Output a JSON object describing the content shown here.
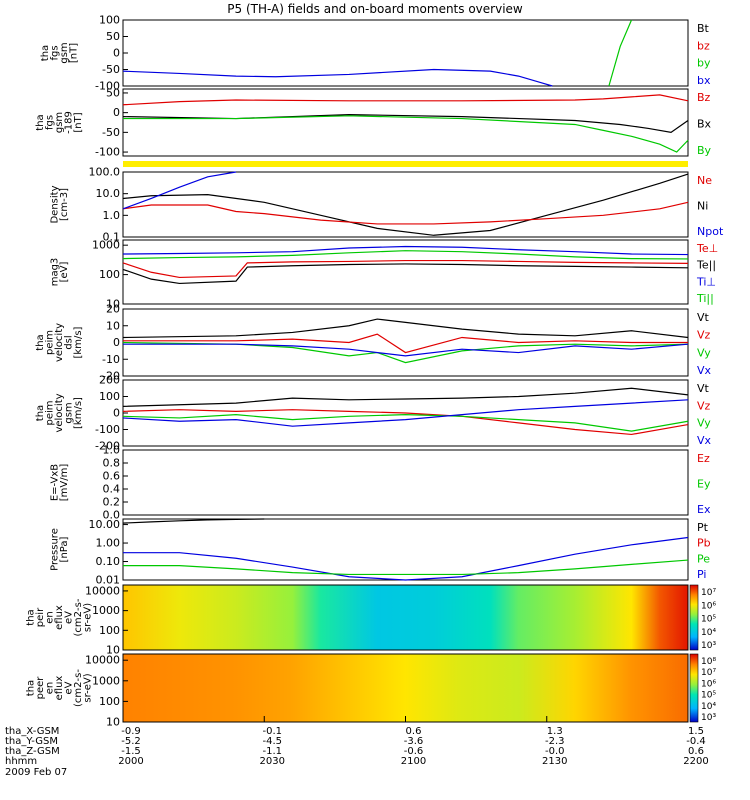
{
  "title": "P5 (TH-A) fields and on-board moments overview",
  "date": "2009 Feb 07",
  "bottom_axis": {
    "times": [
      "2000",
      "2030",
      "2100",
      "2130",
      "2200"
    ],
    "rows": [
      {
        "label": "tha_X-GSM",
        "values": [
          "-0.9",
          "-0.1",
          "0.6",
          "1.3",
          "1.5"
        ]
      },
      {
        "label": "tha_Y-GSM",
        "values": [
          "-5.2",
          "-4.5",
          "-3.6",
          "-2.3",
          "-0.4"
        ]
      },
      {
        "label": "tha_Z-GSM",
        "values": [
          "-1.5",
          "-1.1",
          "-0.6",
          "-0.0",
          "0.6"
        ]
      },
      {
        "label": "hhmm",
        "values": [
          "",
          "",
          "",
          "",
          ""
        ]
      }
    ]
  },
  "colors": {
    "black": "#000000",
    "red": "#e00000",
    "green": "#00c800",
    "blue": "#0000e0"
  },
  "chart_data": [
    {
      "type": "line",
      "ylabel_lines": [
        "tha",
        "fgs",
        "gsm",
        "[nT]"
      ],
      "ylim": [
        -100,
        100
      ],
      "ticks": [
        "100",
        "50",
        "0",
        "-50",
        "-100"
      ],
      "legend": [
        {
          "name": "Bt",
          "color": "#000000"
        },
        {
          "name": "bz",
          "color": "#e00000"
        },
        {
          "name": "by",
          "color": "#00c800"
        },
        {
          "name": "bx",
          "color": "#0000e0"
        }
      ],
      "series": [
        {
          "name": "bx",
          "color": "#0000e0",
          "x": [
            0,
            0.1,
            0.2,
            0.27,
            0.4,
            0.55,
            0.65,
            0.7,
            0.74,
            0.76
          ],
          "y": [
            -55,
            -62,
            -70,
            -72,
            -65,
            -50,
            -55,
            -70,
            -90,
            -100
          ]
        },
        {
          "name": "by",
          "color": "#00c800",
          "x": [
            0.86,
            0.88,
            0.9
          ],
          "y": [
            -100,
            20,
            100
          ]
        }
      ]
    },
    {
      "type": "line",
      "ylabel_lines": [
        "tha",
        "fgs",
        "gsm",
        "-189",
        "[nT]"
      ],
      "ylim": [
        -110,
        60
      ],
      "ticks": [
        "50",
        "0",
        "-50",
        "-100"
      ],
      "legend": [
        {
          "name": "Bz",
          "color": "#e00000"
        },
        {
          "name": "Bx",
          "color": "#000000"
        },
        {
          "name": "By",
          "color": "#00c800"
        }
      ],
      "series": [
        {
          "name": "Bz",
          "color": "#e00000",
          "x": [
            0,
            0.1,
            0.2,
            0.4,
            0.6,
            0.8,
            0.85,
            0.9,
            0.95,
            1.0
          ],
          "y": [
            20,
            28,
            32,
            30,
            30,
            32,
            35,
            40,
            45,
            30
          ]
        },
        {
          "name": "Bx",
          "color": "#000000",
          "x": [
            0,
            0.2,
            0.4,
            0.6,
            0.8,
            0.88,
            0.93,
            0.97,
            1.0
          ],
          "y": [
            -10,
            -15,
            -5,
            -10,
            -20,
            -30,
            -40,
            -50,
            -20
          ]
        },
        {
          "name": "By",
          "color": "#00c800",
          "x": [
            0,
            0.2,
            0.4,
            0.6,
            0.8,
            0.85,
            0.9,
            0.95,
            0.98,
            1.0
          ],
          "y": [
            -15,
            -15,
            -8,
            -15,
            -30,
            -45,
            -60,
            -80,
            -100,
            -70
          ]
        }
      ]
    },
    {
      "type": "line",
      "ylabel_lines": [
        "Density",
        "[cm-3]"
      ],
      "ylim": [
        0.1,
        100
      ],
      "log_scale": true,
      "ticks": [
        "100.0",
        "10.0",
        "1.0",
        "0.1"
      ],
      "legend": [
        {
          "name": "Ne",
          "color": "#e00000"
        },
        {
          "name": "Ni",
          "color": "#000000"
        },
        {
          "name": "Npot",
          "color": "#0000e0"
        }
      ],
      "series": [
        {
          "name": "Ni",
          "color": "#000000",
          "x": [
            0,
            0.05,
            0.15,
            0.25,
            0.35,
            0.45,
            0.55,
            0.65,
            0.75,
            0.85,
            0.95,
            1.0
          ],
          "y": [
            6,
            8,
            9,
            4,
            1,
            0.25,
            0.12,
            0.2,
            1,
            5,
            30,
            80
          ]
        },
        {
          "name": "Ne",
          "color": "#e00000",
          "x": [
            0,
            0.05,
            0.15,
            0.2,
            0.25,
            0.35,
            0.45,
            0.55,
            0.65,
            0.75,
            0.85,
            0.95,
            1.0
          ],
          "y": [
            2,
            3,
            3,
            1.5,
            1.2,
            0.6,
            0.4,
            0.4,
            0.5,
            0.7,
            1,
            2,
            4
          ]
        },
        {
          "name": "Npot",
          "color": "#0000e0",
          "x": [
            0,
            0.05,
            0.1,
            0.15,
            0.2
          ],
          "y": [
            2,
            6,
            20,
            60,
            150
          ]
        }
      ]
    },
    {
      "type": "line",
      "ylabel_lines": [
        "mag3",
        "[eV]"
      ],
      "ylim": [
        10,
        1500
      ],
      "log_scale": true,
      "ticks": [
        "1000",
        "100",
        "10"
      ],
      "legend": [
        {
          "name": "Te⊥",
          "color": "#e00000"
        },
        {
          "name": "Te||",
          "color": "#000000"
        },
        {
          "name": "Ti⊥",
          "color": "#0000e0"
        },
        {
          "name": "Ti||",
          "color": "#00c800"
        }
      ],
      "series": [
        {
          "name": "Ti⊥",
          "color": "#0000e0",
          "x": [
            0,
            0.1,
            0.2,
            0.3,
            0.4,
            0.5,
            0.6,
            0.7,
            0.8,
            0.9,
            1.0
          ],
          "y": [
            500,
            520,
            550,
            600,
            800,
            900,
            850,
            700,
            600,
            500,
            480
          ]
        },
        {
          "name": "Ti||",
          "color": "#00c800",
          "x": [
            0,
            0.1,
            0.2,
            0.3,
            0.4,
            0.5,
            0.6,
            0.7,
            0.8,
            0.9,
            1.0
          ],
          "y": [
            350,
            380,
            400,
            450,
            550,
            650,
            600,
            500,
            400,
            350,
            340
          ]
        },
        {
          "name": "Te⊥",
          "color": "#e00000",
          "x": [
            0,
            0.05,
            0.1,
            0.2,
            0.22,
            0.3,
            0.4,
            0.5,
            0.6,
            0.7,
            0.8,
            0.9,
            1.0
          ],
          "y": [
            250,
            120,
            80,
            90,
            250,
            270,
            280,
            300,
            300,
            280,
            260,
            250,
            240
          ]
        },
        {
          "name": "Te||",
          "color": "#000000",
          "x": [
            0,
            0.05,
            0.1,
            0.2,
            0.22,
            0.3,
            0.4,
            0.5,
            0.6,
            0.7,
            0.8,
            0.9,
            1.0
          ],
          "y": [
            150,
            70,
            50,
            60,
            180,
            200,
            220,
            230,
            220,
            200,
            190,
            180,
            170
          ]
        }
      ]
    },
    {
      "type": "line",
      "ylabel_lines": [
        "tha",
        "peim",
        "velocity",
        "dsl",
        "[km/s]"
      ],
      "ylim": [
        -20,
        20
      ],
      "ticks": [
        "20",
        "10",
        "0",
        "-10",
        "-20"
      ],
      "legend": [
        {
          "name": "Vt",
          "color": "#000000"
        },
        {
          "name": "Vz",
          "color": "#e00000"
        },
        {
          "name": "Vy",
          "color": "#00c800"
        },
        {
          "name": "Vx",
          "color": "#0000e0"
        }
      ],
      "series": [
        {
          "name": "Vt",
          "color": "#000000",
          "x": [
            0,
            0.2,
            0.3,
            0.4,
            0.45,
            0.5,
            0.6,
            0.7,
            0.8,
            0.9,
            1.0
          ],
          "y": [
            3,
            4,
            6,
            10,
            14,
            12,
            8,
            5,
            4,
            7,
            3
          ]
        },
        {
          "name": "Vz",
          "color": "#e00000",
          "x": [
            0,
            0.2,
            0.3,
            0.4,
            0.45,
            0.5,
            0.6,
            0.7,
            0.8,
            0.9,
            1.0
          ],
          "y": [
            1,
            1,
            2,
            0,
            5,
            -6,
            3,
            0,
            1,
            0,
            0
          ]
        },
        {
          "name": "Vy",
          "color": "#00c800",
          "x": [
            0,
            0.2,
            0.3,
            0.4,
            0.45,
            0.5,
            0.6,
            0.7,
            0.8,
            0.9,
            1.0
          ],
          "y": [
            0,
            -1,
            -3,
            -8,
            -6,
            -12,
            -5,
            -2,
            -1,
            -2,
            -1
          ]
        },
        {
          "name": "Vx",
          "color": "#0000e0",
          "x": [
            0,
            0.2,
            0.3,
            0.4,
            0.5,
            0.6,
            0.7,
            0.8,
            0.9,
            1.0
          ],
          "y": [
            -1,
            -1,
            -2,
            -4,
            -8,
            -4,
            -6,
            -2,
            -4,
            -1
          ]
        }
      ]
    },
    {
      "type": "line",
      "ylabel_lines": [
        "tha",
        "peim",
        "velocity",
        "gsm",
        "[km/s]"
      ],
      "ylim": [
        -200,
        200
      ],
      "ticks": [
        "200",
        "100",
        "0",
        "-100",
        "-200"
      ],
      "legend": [
        {
          "name": "Vt",
          "color": "#000000"
        },
        {
          "name": "Vz",
          "color": "#e00000"
        },
        {
          "name": "Vy",
          "color": "#00c800"
        },
        {
          "name": "Vx",
          "color": "#0000e0"
        }
      ],
      "series": [
        {
          "name": "Vt",
          "color": "#000000",
          "x": [
            0,
            0.1,
            0.2,
            0.3,
            0.4,
            0.5,
            0.6,
            0.7,
            0.8,
            0.9,
            1.0
          ],
          "y": [
            40,
            50,
            60,
            90,
            80,
            85,
            90,
            100,
            120,
            150,
            110
          ]
        },
        {
          "name": "Vz",
          "color": "#e00000",
          "x": [
            0,
            0.1,
            0.2,
            0.3,
            0.4,
            0.5,
            0.6,
            0.7,
            0.8,
            0.9,
            1.0
          ],
          "y": [
            10,
            20,
            10,
            20,
            10,
            0,
            -20,
            -60,
            -100,
            -130,
            -70
          ]
        },
        {
          "name": "Vy",
          "color": "#00c800",
          "x": [
            0,
            0.1,
            0.2,
            0.3,
            0.4,
            0.5,
            0.6,
            0.7,
            0.8,
            0.9,
            1.0
          ],
          "y": [
            -20,
            -30,
            -10,
            -40,
            -20,
            -10,
            -20,
            -40,
            -60,
            -110,
            -50
          ]
        },
        {
          "name": "Vx",
          "color": "#0000e0",
          "x": [
            0,
            0.1,
            0.2,
            0.3,
            0.4,
            0.5,
            0.6,
            0.7,
            0.8,
            0.9,
            1.0
          ],
          "y": [
            -30,
            -50,
            -40,
            -80,
            -60,
            -40,
            -10,
            20,
            40,
            60,
            80
          ]
        }
      ]
    },
    {
      "type": "line",
      "ylabel_lines": [
        "E=-VxB",
        "[mV/m]"
      ],
      "ylim": [
        0,
        1
      ],
      "ticks": [
        "1.0",
        "0.8",
        "0.6",
        "0.4",
        "0.2",
        "0.0"
      ],
      "legend": [
        {
          "name": "Ez",
          "color": "#e00000"
        },
        {
          "name": "Ey",
          "color": "#00c800"
        },
        {
          "name": "Ex",
          "color": "#0000e0"
        }
      ],
      "series": []
    },
    {
      "type": "line",
      "ylabel_lines": [
        "Pressure",
        "[nPa]"
      ],
      "ylim": [
        0.01,
        20
      ],
      "log_scale": true,
      "ticks": [
        "10.00",
        "1.00",
        "0.10",
        "0.01"
      ],
      "legend": [
        {
          "name": "Pt",
          "color": "#000000"
        },
        {
          "name": "Pb",
          "color": "#e00000"
        },
        {
          "name": "Pe",
          "color": "#00c800"
        },
        {
          "name": "Pi",
          "color": "#0000e0"
        }
      ],
      "series": [
        {
          "name": "Pt",
          "color": "#000000",
          "x": [
            0,
            0.05,
            0.1,
            0.15,
            0.2,
            0.25
          ],
          "y": [
            12,
            14,
            16,
            18,
            19,
            20
          ]
        },
        {
          "name": "Pi",
          "color": "#0000e0",
          "x": [
            0,
            0.1,
            0.2,
            0.3,
            0.4,
            0.5,
            0.6,
            0.7,
            0.8,
            0.9,
            1.0
          ],
          "y": [
            0.3,
            0.3,
            0.15,
            0.05,
            0.015,
            0.01,
            0.015,
            0.06,
            0.25,
            0.8,
            2
          ]
        },
        {
          "name": "Pe",
          "color": "#00c800",
          "x": [
            0,
            0.1,
            0.2,
            0.3,
            0.4,
            0.5,
            0.6,
            0.7,
            0.8,
            0.9,
            1.0
          ],
          "y": [
            0.06,
            0.06,
            0.04,
            0.025,
            0.02,
            0.02,
            0.02,
            0.025,
            0.04,
            0.07,
            0.12
          ]
        }
      ]
    },
    {
      "type": "heatmap",
      "ylabel_lines": [
        "tha",
        "peir",
        "en",
        "eflux",
        "eV",
        "(cm2-s-",
        "sr-eV)"
      ],
      "ylim": [
        10,
        20000
      ],
      "log_scale": true,
      "ticks": [
        "10000",
        "1000",
        "100",
        "10"
      ],
      "colorbar_ticks": [
        "10⁷",
        "10⁶",
        "10⁵",
        "10⁴",
        "10³"
      ],
      "x": [
        0,
        0.1,
        0.2,
        0.3,
        0.35,
        0.45,
        0.55,
        0.65,
        0.7,
        0.8,
        0.9,
        0.95,
        1.0
      ],
      "values": [
        6.0,
        5.7,
        5.5,
        5.2,
        4.7,
        4.1,
        4.2,
        4.5,
        5.0,
        5.3,
        5.8,
        6.6,
        6.9
      ]
    },
    {
      "type": "heatmap",
      "ylabel_lines": [
        "tha",
        "peer",
        "en",
        "eflux",
        "eV",
        "(cm2-s-",
        "sr-eV)"
      ],
      "ylim": [
        10,
        20000
      ],
      "log_scale": true,
      "ticks": [
        "10000",
        "1000",
        "100",
        "10"
      ],
      "colorbar_ticks": [
        "10⁸",
        "10⁷",
        "10⁶",
        "10⁵",
        "10⁴",
        "10³"
      ],
      "x": [
        0,
        0.2,
        0.3,
        0.4,
        0.5,
        0.6,
        0.7,
        0.8,
        0.9,
        1.0
      ],
      "values": [
        6.4,
        6.3,
        6.2,
        6.0,
        5.8,
        5.6,
        5.5,
        5.9,
        6.3,
        6.5
      ]
    }
  ]
}
